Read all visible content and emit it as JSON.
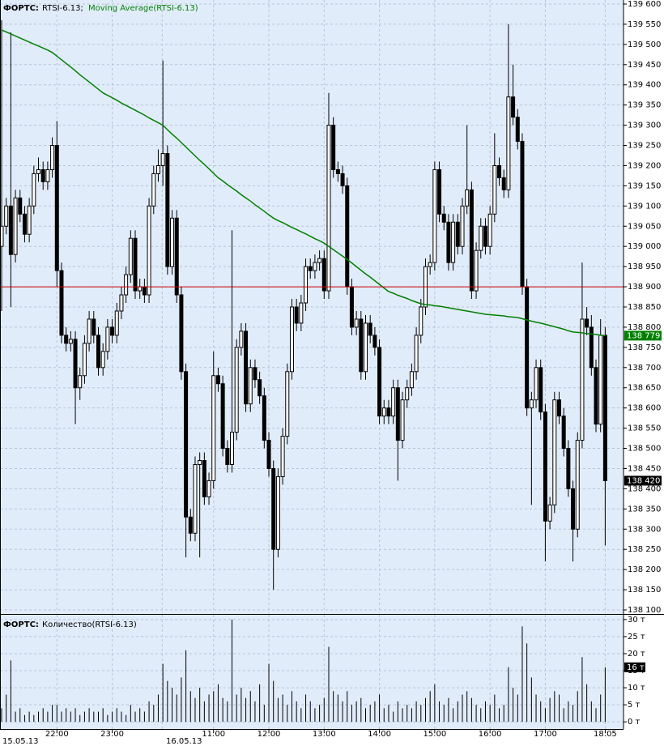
{
  "chart_data": [
    {
      "type": "candlestick",
      "title": "ФОРТС:",
      "subtitle": "RTSI-6.13;",
      "categories": [
        null,
        null,
        null,
        null,
        null,
        null,
        null,
        null,
        null,
        null,
        null,
        null,
        "22:00",
        null,
        null,
        null,
        null,
        null,
        null,
        null,
        null,
        null,
        null,
        null,
        "23:00",
        null,
        null,
        null,
        null,
        null,
        null,
        null,
        null,
        null,
        null,
        null,
        null,
        null,
        null,
        null,
        null,
        null,
        null,
        null,
        null,
        null,
        "11:00",
        null,
        null,
        null,
        null,
        null,
        null,
        null,
        null,
        null,
        null,
        null,
        "12:00",
        null,
        null,
        null,
        null,
        null,
        null,
        null,
        null,
        null,
        null,
        null,
        "13:00",
        null,
        null,
        null,
        null,
        null,
        null,
        null,
        null,
        null,
        null,
        null,
        "14:00",
        null,
        null,
        null,
        null,
        null,
        null,
        null,
        null,
        null,
        null,
        null,
        "15:00",
        null,
        null,
        null,
        null,
        null,
        null,
        null,
        null,
        null,
        null,
        null,
        "16:00",
        null,
        null,
        null,
        null,
        null,
        null,
        null,
        null,
        null,
        null,
        null,
        "17:00",
        null,
        null,
        null,
        null,
        null,
        null,
        null,
        null,
        null,
        null,
        null,
        null,
        "18:05"
      ],
      "date_labels": [
        "15.05.13",
        "16.05.13"
      ],
      "open": [
        139000,
        139050,
        139100,
        138980,
        139120,
        139080,
        139030,
        139100,
        139180,
        139190,
        139160,
        139190,
        139250,
        138940,
        138780,
        138760,
        138770,
        138650,
        138680,
        138760,
        138820,
        138780,
        138700,
        138740,
        138800,
        138780,
        138840,
        138880,
        138930,
        139020,
        138890,
        138900,
        138880,
        139100,
        139180,
        139200,
        139230,
        138950,
        139070,
        138880,
        138690,
        138330,
        138290,
        138460,
        138470,
        138380,
        138420,
        138680,
        138660,
        138500,
        138460,
        138540,
        138750,
        138790,
        138610,
        138700,
        138670,
        138630,
        138520,
        138450,
        138250,
        138430,
        138530,
        138690,
        138850,
        138810,
        138860,
        138950,
        138940,
        138960,
        138970,
        138890,
        139300,
        139190,
        139180,
        139150,
        138900,
        138800,
        138820,
        138690,
        138810,
        138780,
        138750,
        138580,
        138600,
        138580,
        138650,
        138520,
        138620,
        138650,
        138690,
        138780,
        138850,
        138950,
        138960,
        139190,
        139080,
        139060,
        138960,
        139060,
        139000,
        139100,
        139140,
        138890,
        138990,
        139050,
        139000,
        139080,
        139200,
        139170,
        139140,
        139370,
        139320,
        139260,
        138900,
        138600,
        138620,
        138700,
        138590,
        138320,
        138360,
        138620,
        138580,
        138500,
        138400,
        138300,
        138520,
        138820,
        138800,
        138700,
        138560,
        138780
      ],
      "high": [
        139560,
        139120,
        139530,
        139140,
        139140,
        139100,
        139120,
        139200,
        139220,
        139210,
        139210,
        139270,
        139310,
        138960,
        138800,
        138790,
        138790,
        138700,
        138780,
        138840,
        138840,
        138800,
        138760,
        138820,
        138820,
        138860,
        138900,
        138950,
        139040,
        139040,
        138920,
        138920,
        139120,
        139200,
        139240,
        139460,
        139250,
        139090,
        139090,
        138900,
        138710,
        138350,
        138480,
        138490,
        138490,
        138440,
        138740,
        138700,
        138680,
        138520,
        139040,
        138770,
        138810,
        138810,
        138720,
        138720,
        138690,
        138650,
        138540,
        138470,
        138450,
        138550,
        138710,
        138870,
        138870,
        138880,
        138970,
        138970,
        138980,
        138990,
        138990,
        139380,
        139320,
        139210,
        139200,
        139170,
        138920,
        138840,
        138840,
        138830,
        138830,
        138800,
        138770,
        138620,
        138620,
        138670,
        138670,
        138640,
        138670,
        138710,
        138800,
        138870,
        138970,
        138980,
        139210,
        139210,
        139100,
        139080,
        139080,
        139080,
        139120,
        139300,
        139160,
        139010,
        139070,
        139070,
        139100,
        139280,
        139220,
        139190,
        139550,
        139450,
        139340,
        139280,
        138920,
        138640,
        138720,
        138720,
        138610,
        138380,
        138640,
        138640,
        138600,
        138520,
        138420,
        138540,
        138960,
        138850,
        138830,
        138720,
        138820,
        138800
      ],
      "low": [
        138840,
        139030,
        138850,
        138960,
        139060,
        139010,
        139010,
        139080,
        139160,
        139140,
        139140,
        139170,
        138900,
        138760,
        138740,
        138740,
        138560,
        138620,
        138660,
        138740,
        138760,
        138680,
        138680,
        138720,
        138760,
        138760,
        138820,
        138860,
        138910,
        138870,
        138870,
        138860,
        138860,
        139080,
        139160,
        139150,
        138930,
        138930,
        138860,
        138670,
        138230,
        138270,
        138270,
        138230,
        138360,
        138360,
        138400,
        138640,
        138480,
        138440,
        138440,
        138520,
        138730,
        138590,
        138590,
        138650,
        138610,
        138500,
        138430,
        138150,
        138230,
        138410,
        138510,
        138670,
        138790,
        138790,
        138840,
        138920,
        138920,
        138940,
        138870,
        138870,
        139170,
        139160,
        139130,
        138880,
        138780,
        138780,
        138670,
        138670,
        138760,
        138730,
        138560,
        138560,
        138560,
        138560,
        138420,
        138500,
        138600,
        138630,
        138670,
        138760,
        138830,
        138930,
        138940,
        139060,
        139040,
        138940,
        138940,
        138980,
        138980,
        139080,
        138870,
        138870,
        138970,
        138980,
        138980,
        139060,
        139150,
        139120,
        139120,
        139300,
        139240,
        138880,
        138580,
        138360,
        138600,
        138570,
        138220,
        138300,
        138340,
        138560,
        138480,
        138380,
        138220,
        138280,
        138500,
        138780,
        138680,
        138540,
        138540,
        138260
      ],
      "close": [
        139050,
        139100,
        138980,
        139120,
        139080,
        139030,
        139100,
        139180,
        139190,
        139160,
        139190,
        139250,
        138940,
        138780,
        138760,
        138770,
        138650,
        138680,
        138760,
        138820,
        138780,
        138700,
        138740,
        138800,
        138780,
        138840,
        138880,
        138930,
        139020,
        138890,
        138900,
        138880,
        139100,
        139180,
        139200,
        139230,
        138950,
        139070,
        138880,
        138690,
        138330,
        138290,
        138460,
        138470,
        138380,
        138420,
        138680,
        138660,
        138500,
        138460,
        138540,
        138750,
        138790,
        138610,
        138700,
        138670,
        138630,
        138520,
        138450,
        138250,
        138430,
        138530,
        138690,
        138850,
        138810,
        138860,
        138950,
        138940,
        138960,
        138970,
        138890,
        139300,
        139190,
        139180,
        139150,
        138900,
        138800,
        138820,
        138690,
        138810,
        138780,
        138750,
        138580,
        138600,
        138580,
        138650,
        138520,
        138620,
        138650,
        138690,
        138780,
        138850,
        138950,
        138960,
        139190,
        139080,
        139060,
        138960,
        139060,
        139000,
        139100,
        139140,
        138890,
        138990,
        139050,
        139000,
        139080,
        139200,
        139170,
        139140,
        139370,
        139320,
        139260,
        138900,
        138600,
        138620,
        138700,
        138590,
        138320,
        138360,
        138620,
        138580,
        138500,
        138400,
        138300,
        138520,
        138820,
        138800,
        138700,
        138560,
        138780,
        138420
      ],
      "series": [
        {
          "name": "Moving Average(RTSI-6.13)",
          "color": "#008000",
          "values": [
            139536,
            139531,
            139526,
            139521,
            139516,
            139511,
            139506,
            139501,
            139496,
            139491,
            139486,
            139480,
            139471,
            139462,
            139453,
            139444,
            139435,
            139425,
            139416,
            139407,
            139398,
            139389,
            139380,
            139374,
            139368,
            139362,
            139355,
            139349,
            139343,
            139337,
            139331,
            139325,
            139318,
            139312,
            139306,
            139300,
            139289,
            139278,
            139268,
            139257,
            139246,
            139235,
            139224,
            139213,
            139203,
            139192,
            139181,
            139170,
            139162,
            139153,
            139145,
            139137,
            139128,
            139120,
            139112,
            139103,
            139095,
            139087,
            139078,
            139070,
            139064,
            139059,
            139053,
            139047,
            139042,
            139036,
            139031,
            139025,
            139019,
            139014,
            139008,
            139000,
            138992,
            138984,
            138976,
            138968,
            138959,
            138950,
            138941,
            138932,
            138924,
            138915,
            138906,
            138897,
            138888,
            138884,
            138879,
            138875,
            138871,
            138866,
            138862,
            138858,
            138856,
            138855,
            138853,
            138852,
            138850,
            138848,
            138846,
            138844,
            138842,
            138840,
            138838,
            138836,
            138834,
            138832,
            138831,
            138830,
            138829,
            138828,
            138826,
            138825,
            138824,
            138821,
            138818,
            138815,
            138812,
            138810,
            138807,
            138804,
            138801,
            138798,
            138795,
            138791,
            138788,
            138787,
            138786,
            138784,
            138783,
            138782,
            138780,
            138779
          ]
        }
      ],
      "hline": {
        "value": 138900,
        "color": "#cc0000"
      },
      "last_label": {
        "value": 138420,
        "label": "138 420"
      },
      "ma_label": {
        "value": 138779,
        "label": "138 779"
      },
      "ylim": [
        138092,
        139610
      ],
      "yticks": [
        {
          "value": 139600,
          "label": "139 600"
        },
        {
          "value": 139550,
          "label": "139 550"
        },
        {
          "value": 139500,
          "label": "139 500"
        },
        {
          "value": 139450,
          "label": "139 450"
        },
        {
          "value": 139400,
          "label": "139 400"
        },
        {
          "value": 139350,
          "label": "139 350"
        },
        {
          "value": 139300,
          "label": "139 300"
        },
        {
          "value": 139250,
          "label": "139 250"
        },
        {
          "value": 139200,
          "label": "139 200"
        },
        {
          "value": 139150,
          "label": "139 150"
        },
        {
          "value": 139100,
          "label": "139 100"
        },
        {
          "value": 139050,
          "label": "139 050"
        },
        {
          "value": 139000,
          "label": "139 000"
        },
        {
          "value": 138950,
          "label": "138 950"
        },
        {
          "value": 138900,
          "label": "138 900"
        },
        {
          "value": 138850,
          "label": "138 850"
        },
        {
          "value": 138800,
          "label": "138 800"
        },
        {
          "value": 138750,
          "label": "138 750"
        },
        {
          "value": 138700,
          "label": "138 700"
        },
        {
          "value": 138650,
          "label": "138 650"
        },
        {
          "value": 138600,
          "label": "138 600"
        },
        {
          "value": 138550,
          "label": "138 550"
        },
        {
          "value": 138500,
          "label": "138 500"
        },
        {
          "value": 138450,
          "label": "138 450"
        },
        {
          "value": 138400,
          "label": "138 400"
        },
        {
          "value": 138350,
          "label": "138 350"
        },
        {
          "value": 138300,
          "label": "138 300"
        },
        {
          "value": 138250,
          "label": "138 250"
        },
        {
          "value": 138200,
          "label": "138 200"
        },
        {
          "value": 138150,
          "label": "138 150"
        },
        {
          "value": 138100,
          "label": "138 100"
        }
      ],
      "grid": true
    },
    {
      "type": "bar",
      "title": "ФОРТС:",
      "series": [
        {
          "name": "Количество(RTSI-6.13)",
          "color": "#000000",
          "values": [
            4,
            8,
            18,
            3,
            4,
            2,
            3,
            2,
            3,
            4,
            3,
            5,
            5,
            3,
            4,
            3,
            4,
            2,
            3,
            4,
            3,
            3,
            4,
            2,
            3,
            4,
            3,
            2,
            5,
            3,
            4,
            3,
            6,
            5,
            8,
            17,
            12,
            10,
            8,
            13,
            21,
            9,
            7,
            10,
            6,
            8,
            9,
            11,
            7,
            6,
            30,
            8,
            10,
            7,
            9,
            6,
            11,
            5,
            17,
            12,
            7,
            8,
            5,
            9,
            6,
            4,
            8,
            6,
            4,
            5,
            7,
            22,
            9,
            8,
            6,
            9,
            5,
            6,
            7,
            4,
            5,
            6,
            8,
            4,
            5,
            3,
            6,
            4,
            5,
            4,
            6,
            5,
            7,
            9,
            11,
            6,
            5,
            7,
            4,
            6,
            8,
            9,
            7,
            5,
            4,
            6,
            5,
            8,
            4,
            5,
            16,
            10,
            8,
            28,
            23,
            13,
            8,
            6,
            4,
            7,
            9,
            8,
            4,
            6,
            5,
            9,
            19,
            11,
            6,
            4,
            8,
            16
          ]
        }
      ],
      "last_label": {
        "value": 16,
        "label": "16 т"
      },
      "ylim": [
        -2.1,
        31.4
      ],
      "yticks": [
        {
          "value": 30,
          "label": "30 т"
        },
        {
          "value": 25,
          "label": "25 т"
        },
        {
          "value": 20,
          "label": "20 т"
        },
        {
          "value": 15,
          "label": "15 т"
        },
        {
          "value": 10,
          "label": "10 т"
        },
        {
          "value": 5,
          "label": "5 т"
        },
        {
          "value": 0,
          "label": "0 т"
        }
      ],
      "grid": true
    }
  ]
}
